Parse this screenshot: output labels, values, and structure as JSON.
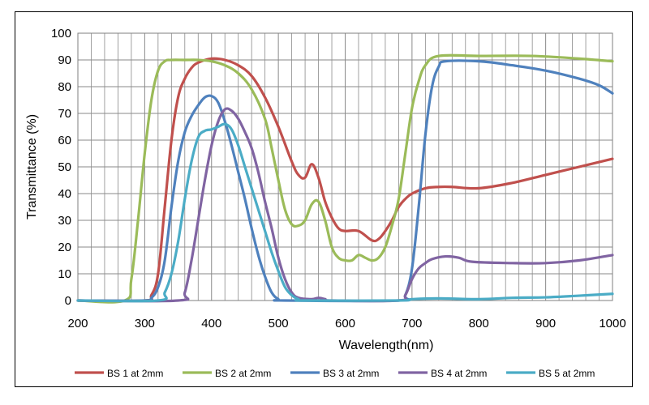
{
  "chart_data": {
    "type": "line",
    "title": "",
    "xlabel": "Wavelength(nm)",
    "ylabel": "Transmittance (%)",
    "xlim": [
      200,
      1000
    ],
    "ylim": [
      0,
      100
    ],
    "x_ticks": [
      "200",
      "300",
      "400",
      "500",
      "600",
      "700",
      "800",
      "900",
      "1000"
    ],
    "y_ticks": [
      "0",
      "10",
      "20",
      "30",
      "40",
      "50",
      "60",
      "70",
      "80",
      "90",
      "100"
    ],
    "grid": true,
    "legend_position": "bottom",
    "series": [
      {
        "name": "BS 1 at 2mm",
        "color": "#c0504d",
        "points": [
          [
            200,
            0
          ],
          [
            300,
            0
          ],
          [
            310,
            2
          ],
          [
            320,
            10
          ],
          [
            330,
            35
          ],
          [
            340,
            60
          ],
          [
            350,
            76
          ],
          [
            360,
            83
          ],
          [
            370,
            87
          ],
          [
            380,
            89
          ],
          [
            400,
            90.5
          ],
          [
            420,
            90
          ],
          [
            440,
            88
          ],
          [
            460,
            84
          ],
          [
            480,
            76
          ],
          [
            500,
            65
          ],
          [
            520,
            52
          ],
          [
            530,
            47
          ],
          [
            540,
            46
          ],
          [
            550,
            51
          ],
          [
            560,
            46
          ],
          [
            570,
            37
          ],
          [
            580,
            31
          ],
          [
            590,
            27
          ],
          [
            600,
            26
          ],
          [
            620,
            26
          ],
          [
            640,
            22.5
          ],
          [
            650,
            23
          ],
          [
            660,
            26
          ],
          [
            670,
            30
          ],
          [
            680,
            35
          ],
          [
            690,
            38
          ],
          [
            700,
            40
          ],
          [
            720,
            42
          ],
          [
            740,
            42.5
          ],
          [
            760,
            42.5
          ],
          [
            800,
            42
          ],
          [
            850,
            44
          ],
          [
            900,
            47
          ],
          [
            950,
            50
          ],
          [
            1000,
            53
          ]
        ]
      },
      {
        "name": "BS 2 at 2mm",
        "color": "#9bbb59",
        "points": [
          [
            200,
            0
          ],
          [
            270,
            0
          ],
          [
            280,
            8
          ],
          [
            290,
            30
          ],
          [
            300,
            55
          ],
          [
            310,
            75
          ],
          [
            320,
            86
          ],
          [
            330,
            89.5
          ],
          [
            340,
            90
          ],
          [
            360,
            90
          ],
          [
            380,
            90
          ],
          [
            400,
            89.5
          ],
          [
            420,
            88
          ],
          [
            440,
            85
          ],
          [
            460,
            79
          ],
          [
            480,
            68
          ],
          [
            490,
            57
          ],
          [
            500,
            45
          ],
          [
            510,
            34
          ],
          [
            520,
            28.5
          ],
          [
            530,
            28
          ],
          [
            540,
            30
          ],
          [
            550,
            36
          ],
          [
            560,
            37
          ],
          [
            570,
            30
          ],
          [
            580,
            20
          ],
          [
            590,
            16
          ],
          [
            600,
            15
          ],
          [
            610,
            15
          ],
          [
            620,
            17
          ],
          [
            630,
            16
          ],
          [
            640,
            15
          ],
          [
            650,
            16
          ],
          [
            660,
            20
          ],
          [
            670,
            28
          ],
          [
            680,
            38
          ],
          [
            690,
            55
          ],
          [
            700,
            72
          ],
          [
            710,
            82
          ],
          [
            720,
            88
          ],
          [
            740,
            91.5
          ],
          [
            800,
            91.5
          ],
          [
            880,
            91.5
          ],
          [
            950,
            90.5
          ],
          [
            1000,
            89.5
          ]
        ]
      },
      {
        "name": "BS 3 at 2mm",
        "color": "#4f81bd",
        "points": [
          [
            200,
            0
          ],
          [
            300,
            0
          ],
          [
            310,
            1
          ],
          [
            320,
            5
          ],
          [
            330,
            15
          ],
          [
            340,
            35
          ],
          [
            350,
            52
          ],
          [
            360,
            63
          ],
          [
            370,
            69
          ],
          [
            380,
            73
          ],
          [
            390,
            76
          ],
          [
            400,
            76.5
          ],
          [
            410,
            74
          ],
          [
            420,
            67
          ],
          [
            430,
            58
          ],
          [
            440,
            48
          ],
          [
            450,
            38
          ],
          [
            460,
            27
          ],
          [
            470,
            17
          ],
          [
            480,
            9
          ],
          [
            490,
            3
          ],
          [
            500,
            0.5
          ],
          [
            510,
            0
          ],
          [
            680,
            0
          ],
          [
            690,
            2
          ],
          [
            700,
            12
          ],
          [
            710,
            35
          ],
          [
            720,
            62
          ],
          [
            730,
            80
          ],
          [
            740,
            87.5
          ],
          [
            750,
            89.5
          ],
          [
            800,
            89.5
          ],
          [
            850,
            88
          ],
          [
            900,
            86
          ],
          [
            950,
            83
          ],
          [
            980,
            80.5
          ],
          [
            1000,
            77.5
          ]
        ]
      },
      {
        "name": "BS 4 at 2mm",
        "color": "#8064a2",
        "points": [
          [
            200,
            0
          ],
          [
            350,
            0
          ],
          [
            360,
            3
          ],
          [
            370,
            15
          ],
          [
            380,
            30
          ],
          [
            390,
            45
          ],
          [
            400,
            58
          ],
          [
            410,
            67
          ],
          [
            420,
            71.5
          ],
          [
            430,
            71
          ],
          [
            440,
            68
          ],
          [
            450,
            63
          ],
          [
            460,
            57
          ],
          [
            470,
            48
          ],
          [
            480,
            37
          ],
          [
            490,
            27
          ],
          [
            500,
            16
          ],
          [
            510,
            8
          ],
          [
            520,
            3
          ],
          [
            530,
            1
          ],
          [
            550,
            0.5
          ],
          [
            560,
            1
          ],
          [
            570,
            0.5
          ],
          [
            580,
            0
          ],
          [
            680,
            0
          ],
          [
            690,
            2
          ],
          [
            700,
            8
          ],
          [
            710,
            12
          ],
          [
            720,
            14
          ],
          [
            730,
            15.5
          ],
          [
            750,
            16.5
          ],
          [
            770,
            16
          ],
          [
            790,
            14.5
          ],
          [
            850,
            14
          ],
          [
            900,
            14
          ],
          [
            950,
            15
          ],
          [
            1000,
            17
          ]
        ]
      },
      {
        "name": "BS 5 at 2mm",
        "color": "#4bacc6",
        "points": [
          [
            200,
            0
          ],
          [
            320,
            0
          ],
          [
            330,
            3
          ],
          [
            340,
            10
          ],
          [
            350,
            22
          ],
          [
            360,
            38
          ],
          [
            370,
            52
          ],
          [
            380,
            61
          ],
          [
            390,
            63.5
          ],
          [
            400,
            64
          ],
          [
            410,
            65
          ],
          [
            420,
            66
          ],
          [
            430,
            64
          ],
          [
            440,
            58
          ],
          [
            450,
            50
          ],
          [
            460,
            42
          ],
          [
            470,
            34
          ],
          [
            480,
            26
          ],
          [
            490,
            18
          ],
          [
            500,
            11
          ],
          [
            510,
            5
          ],
          [
            520,
            2
          ],
          [
            530,
            0.5
          ],
          [
            540,
            0
          ],
          [
            680,
            0
          ],
          [
            700,
            0.5
          ],
          [
            740,
            0.8
          ],
          [
            800,
            0.5
          ],
          [
            850,
            1
          ],
          [
            900,
            1.2
          ],
          [
            950,
            1.8
          ],
          [
            1000,
            2.5
          ]
        ]
      }
    ]
  }
}
